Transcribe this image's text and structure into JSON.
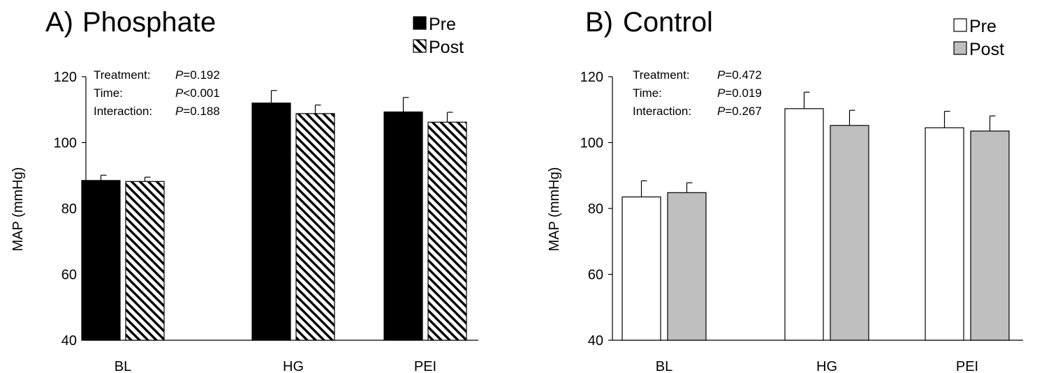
{
  "chart_data": [
    {
      "type": "bar",
      "panel_letter": "A)",
      "title": "Phosphate",
      "ylabel": "MAP (mmHg)",
      "xlabel": "",
      "ylim": [
        40,
        120
      ],
      "yticks": [
        40,
        60,
        80,
        100,
        120
      ],
      "grid": false,
      "legend_position": "top-right",
      "categories": [
        "BL",
        "HG",
        "PEI"
      ],
      "series": [
        {
          "name": "Pre",
          "values": [
            88.5,
            112,
            109.3
          ],
          "errors": [
            1.6,
            3.8,
            4.4
          ],
          "fill": "#000000",
          "pattern": "solid"
        },
        {
          "name": "Post",
          "values": [
            88.2,
            108.8,
            106.2
          ],
          "errors": [
            1.3,
            2.6,
            3.0
          ],
          "fill": "#ffffff",
          "pattern": "diagonal-stripes"
        }
      ],
      "stats": [
        {
          "label": "Treatment:",
          "p_label": "P",
          "p_value": "=0.192"
        },
        {
          "label": "Time:",
          "p_label": "P",
          "p_value": "<0.001"
        },
        {
          "label": "Interaction:",
          "p_label": "P",
          "p_value": "=0.188"
        }
      ]
    },
    {
      "type": "bar",
      "panel_letter": "B)",
      "title": "Control",
      "ylabel": "MAP (mmHg)",
      "xlabel": "",
      "ylim": [
        40,
        120
      ],
      "yticks": [
        40,
        60,
        80,
        100,
        120
      ],
      "grid": false,
      "legend_position": "top-right",
      "categories": [
        "BL",
        "HG",
        "PEI"
      ],
      "series": [
        {
          "name": "Pre",
          "values": [
            83.5,
            110.3,
            104.5
          ],
          "errors": [
            4.9,
            5.0,
            5.0
          ],
          "fill": "#ffffff",
          "pattern": "solid"
        },
        {
          "name": "Post",
          "values": [
            84.8,
            105.2,
            103.5
          ],
          "errors": [
            3.0,
            4.6,
            4.6
          ],
          "fill": "#bfbfbf",
          "pattern": "solid"
        }
      ],
      "stats": [
        {
          "label": "Treatment:",
          "p_label": "P",
          "p_value": "=0.472"
        },
        {
          "label": "Time:",
          "p_label": "P",
          "p_value": "=0.019"
        },
        {
          "label": "Interaction:",
          "p_label": "P",
          "p_value": "=0.267"
        }
      ]
    }
  ]
}
